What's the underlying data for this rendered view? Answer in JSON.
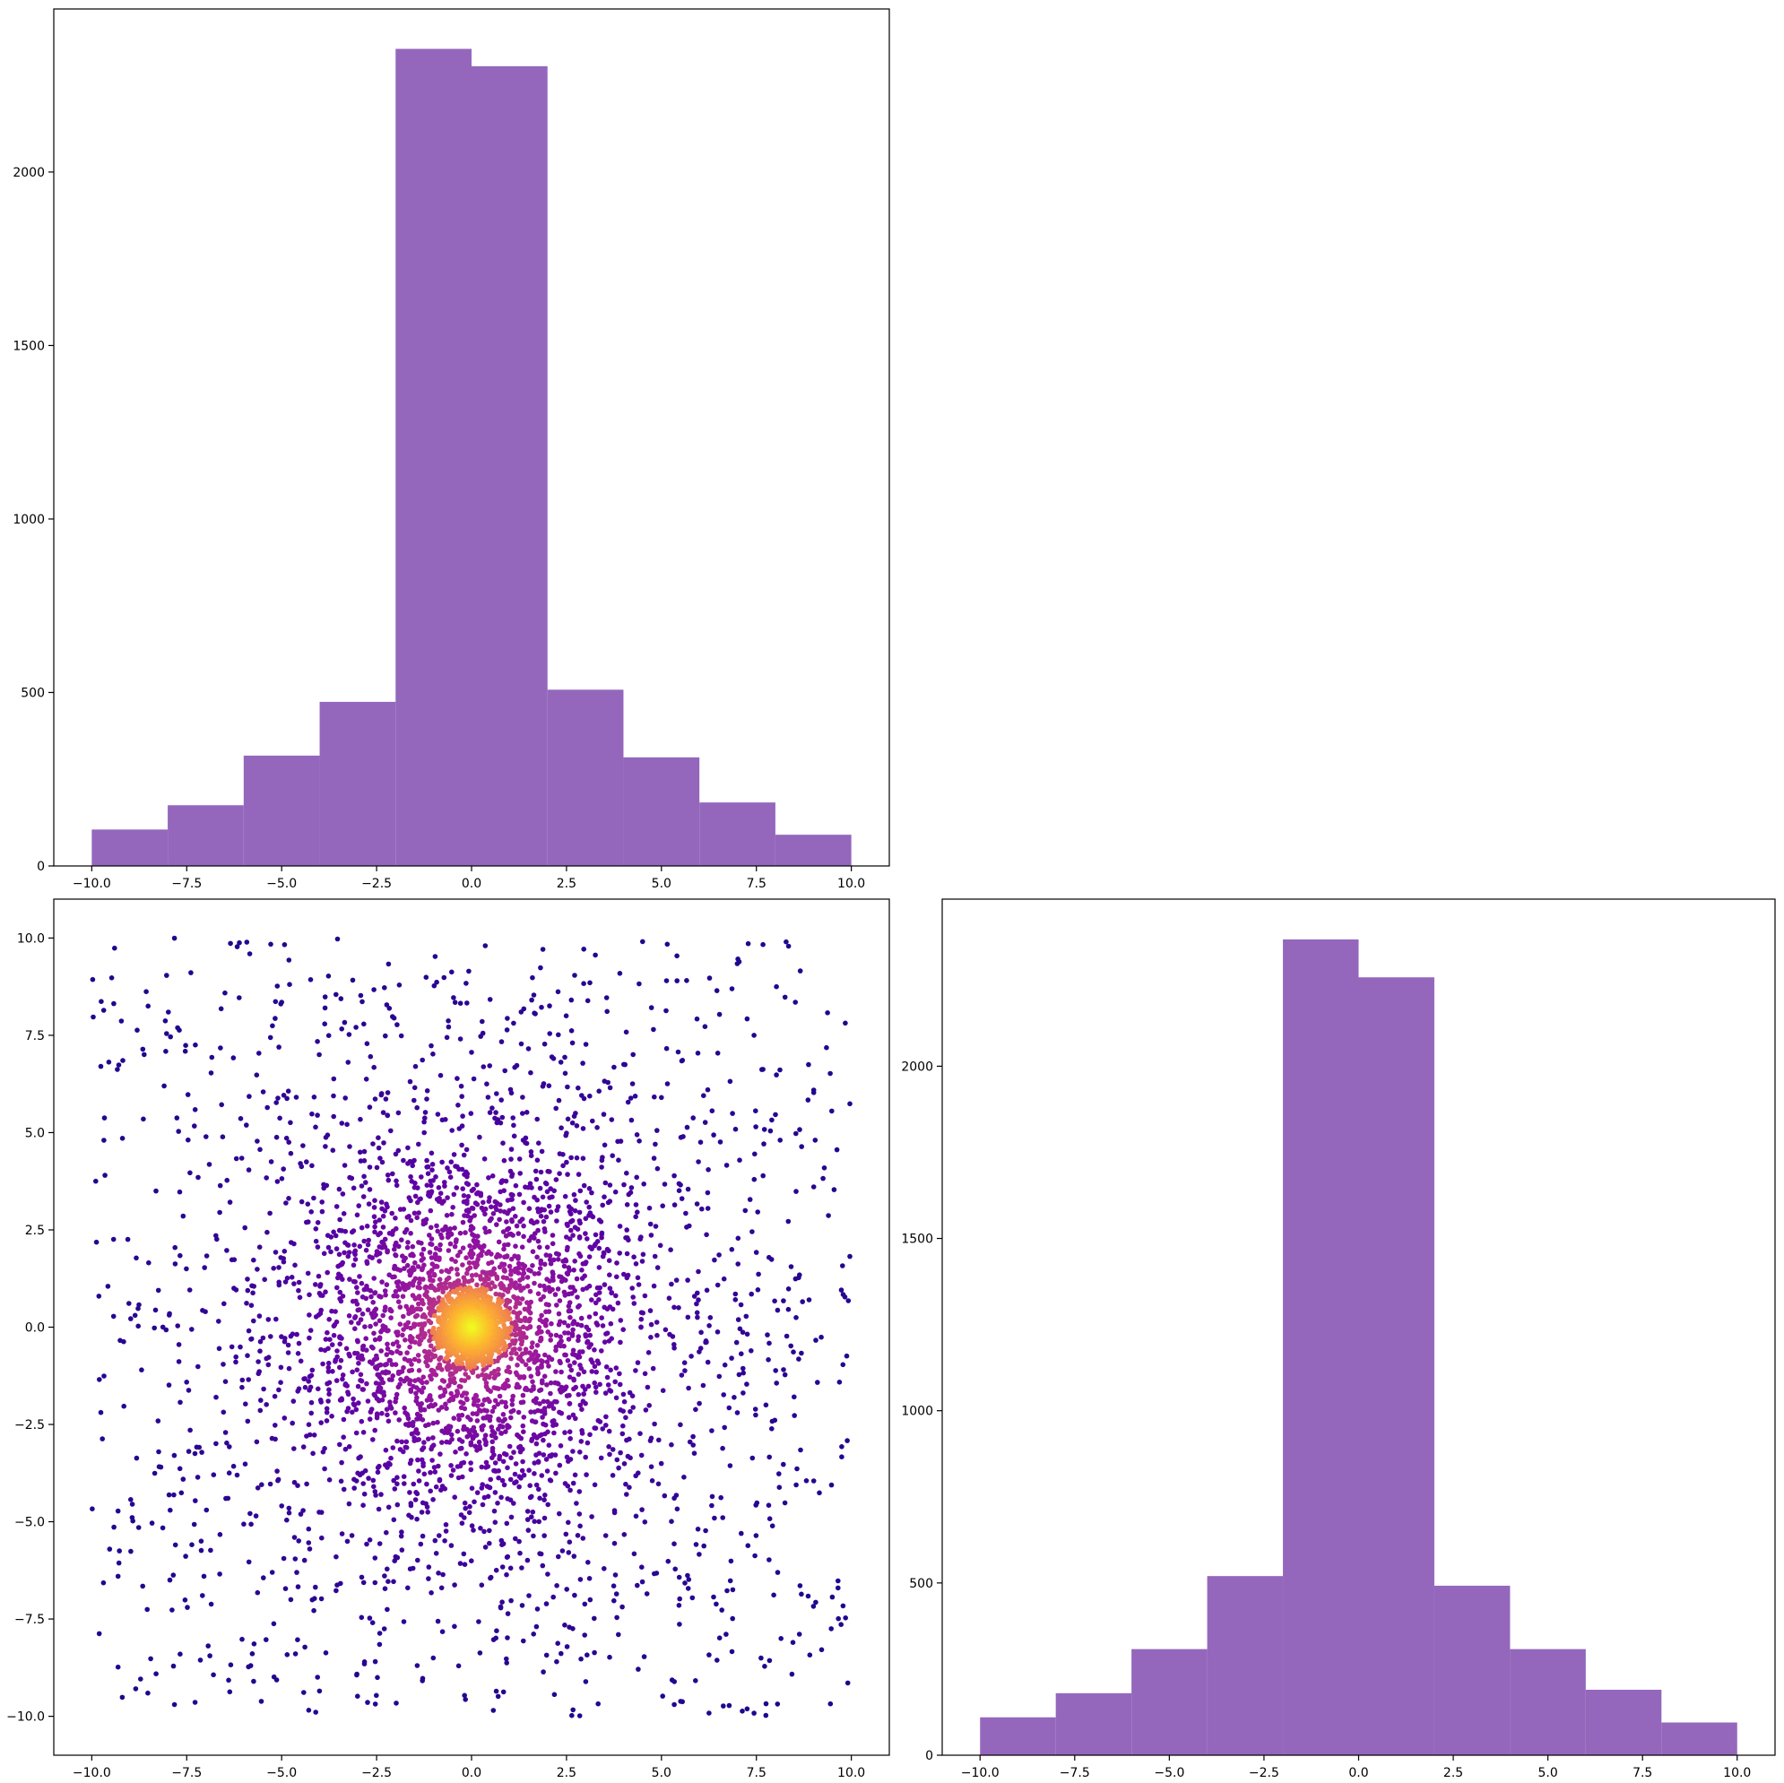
{
  "figure": {
    "background": "#ffffff"
  },
  "chart_data": [
    {
      "type": "bar",
      "subtype": "histogram",
      "panel": "top-left",
      "title": "",
      "xlabel": "",
      "ylabel": "",
      "color": "#9467bd",
      "bin_edges": [
        -10,
        -8,
        -6,
        -4,
        -2,
        0,
        2,
        4,
        6,
        8,
        10
      ],
      "values": [
        105,
        175,
        318,
        473,
        2355,
        2305,
        508,
        313,
        183,
        90
      ],
      "xlim": [
        -11,
        11
      ],
      "ylim": [
        0,
        2470
      ],
      "xticks": [
        -10,
        -7.5,
        -5,
        -2.5,
        0,
        2.5,
        5,
        7.5,
        10
      ],
      "xtick_labels": [
        "−10.0",
        "−7.5",
        "−5.0",
        "−2.5",
        "0.0",
        "2.5",
        "5.0",
        "7.5",
        "10.0"
      ],
      "yticks": [
        0,
        500,
        1000,
        1500,
        2000
      ],
      "ytick_labels": [
        "0",
        "500",
        "1000",
        "1500",
        "2000"
      ],
      "grid": false,
      "legend": "none"
    },
    {
      "type": "scatter",
      "panel": "bottom-left",
      "title": "",
      "xlabel": "",
      "ylabel": "",
      "colormap": "plasma",
      "colormap_stops": [
        "#0d0887",
        "#5c01a6",
        "#9c179e",
        "#cc4778",
        "#ed7953",
        "#fdb42f",
        "#f0f921"
      ],
      "color_encoding": "point density (dense center = yellow, sparse edges = dark blue)",
      "n_points": 5000,
      "x_range": [
        -10,
        10
      ],
      "y_range": [
        -10,
        10
      ],
      "core": {
        "center": [
          0,
          0
        ],
        "radius": 1
      },
      "xlim": [
        -11,
        11
      ],
      "ylim": [
        -11,
        11
      ],
      "xticks": [
        -10,
        -7.5,
        -5,
        -2.5,
        0,
        2.5,
        5,
        7.5,
        10
      ],
      "xtick_labels": [
        "−10.0",
        "−7.5",
        "−5.0",
        "−2.5",
        "0.0",
        "2.5",
        "5.0",
        "7.5",
        "10.0"
      ],
      "yticks": [
        -10,
        -7.5,
        -5,
        -2.5,
        0,
        2.5,
        5,
        7.5,
        10
      ],
      "ytick_labels": [
        "−10.0",
        "−7.5",
        "−5.0",
        "−2.5",
        "0.0",
        "2.5",
        "5.0",
        "7.5",
        "10.0"
      ],
      "grid": false,
      "legend": "none"
    },
    {
      "type": "bar",
      "subtype": "histogram",
      "panel": "bottom-right",
      "title": "",
      "xlabel": "",
      "ylabel": "",
      "color": "#9467bd",
      "bin_edges": [
        -10,
        -8,
        -6,
        -4,
        -2,
        0,
        2,
        4,
        6,
        8,
        10
      ],
      "values": [
        110,
        180,
        308,
        520,
        2368,
        2258,
        492,
        308,
        190,
        95
      ],
      "xlim": [
        -11,
        11
      ],
      "ylim": [
        0,
        2485
      ],
      "xticks": [
        -10,
        -7.5,
        -5,
        -2.5,
        0,
        2.5,
        5,
        7.5,
        10
      ],
      "xtick_labels": [
        "−10.0",
        "−7.5",
        "−5.0",
        "−2.5",
        "0.0",
        "2.5",
        "5.0",
        "7.5",
        "10.0"
      ],
      "yticks": [
        0,
        500,
        1000,
        1500,
        2000
      ],
      "ytick_labels": [
        "0",
        "500",
        "1000",
        "1500",
        "2000"
      ],
      "grid": false,
      "legend": "none"
    }
  ]
}
